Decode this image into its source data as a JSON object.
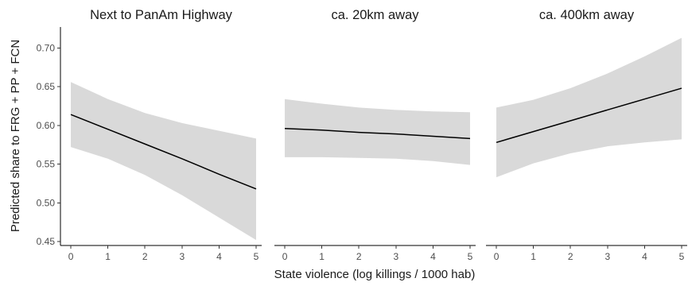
{
  "chart_data": {
    "type": "line",
    "xlabel": "State violence (log killings / 1000 hab)",
    "ylabel": "Predicted share to FRG + PP + FCN",
    "x_ticks": [
      0,
      1,
      2,
      3,
      4,
      5
    ],
    "y_ticks": [
      "0.45",
      "0.50",
      "0.55",
      "0.60",
      "0.65",
      "0.70"
    ],
    "xlim": [
      -0.28,
      5.15
    ],
    "ylim": [
      0.445,
      0.727
    ],
    "band_color": "#d9d9d9",
    "line_color": "#000000",
    "panels": [
      {
        "title": "Next to PanAm Highway",
        "x": [
          0,
          1,
          2,
          3,
          4,
          5
        ],
        "fit": [
          0.614,
          0.595,
          0.576,
          0.557,
          0.537,
          0.518
        ],
        "lower": [
          0.572,
          0.557,
          0.536,
          0.51,
          0.481,
          0.452
        ],
        "upper": [
          0.656,
          0.634,
          0.616,
          0.603,
          0.593,
          0.583
        ]
      },
      {
        "title": "ca. 20km away",
        "x": [
          0,
          1,
          2,
          3,
          4,
          5
        ],
        "fit": [
          0.596,
          0.594,
          0.591,
          0.589,
          0.586,
          0.583
        ],
        "lower": [
          0.559,
          0.559,
          0.558,
          0.557,
          0.554,
          0.549
        ],
        "upper": [
          0.634,
          0.628,
          0.623,
          0.62,
          0.618,
          0.617
        ]
      },
      {
        "title": "ca. 400km away",
        "x": [
          0,
          1,
          2,
          3,
          4,
          5
        ],
        "fit": [
          0.578,
          0.592,
          0.606,
          0.62,
          0.634,
          0.648
        ],
        "lower": [
          0.533,
          0.551,
          0.564,
          0.573,
          0.578,
          0.582
        ],
        "upper": [
          0.623,
          0.633,
          0.648,
          0.667,
          0.689,
          0.713
        ]
      }
    ]
  }
}
